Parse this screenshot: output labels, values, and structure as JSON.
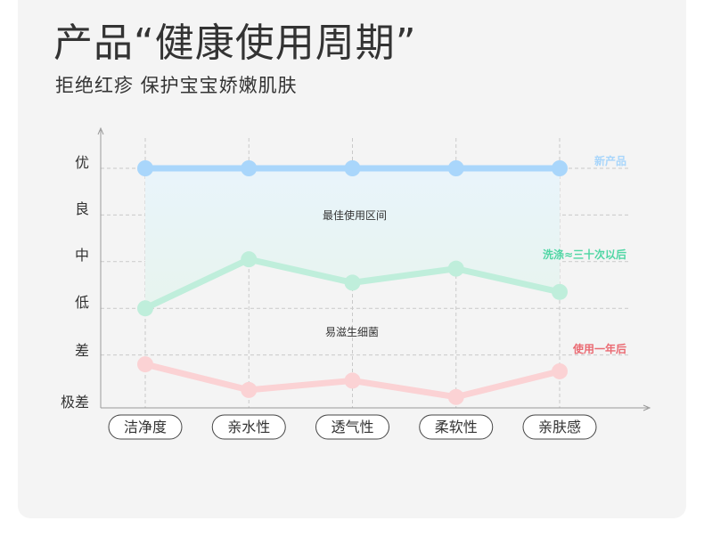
{
  "header": {
    "title": "产品“健康使用周期”",
    "subtitle": "拒绝红疹 保护宝宝娇嫩肌肤"
  },
  "chart_data": {
    "type": "line",
    "categories": [
      "洁净度",
      "亲水性",
      "透气性",
      "柔软性",
      "亲肤感"
    ],
    "y_ticks": [
      "极差",
      "差",
      "低",
      "中",
      "良",
      "优"
    ],
    "ylim": [
      0,
      5
    ],
    "series": [
      {
        "name": "新产品",
        "values": [
          5,
          5,
          5,
          5,
          5
        ],
        "color": "#a9d6fb"
      },
      {
        "name": "洗涤≈三十次以后",
        "values": [
          2,
          3.05,
          2.55,
          2.85,
          2.35
        ],
        "color": "#bfeedb",
        "label_color": "#50d6a4"
      },
      {
        "name": "使用一年后",
        "values": [
          0.8,
          0.25,
          0.45,
          0.1,
          0.65
        ],
        "color": "#fbd2d4",
        "label_color": "#ea6a72"
      }
    ],
    "annotations": [
      "最佳使用区间",
      "易滋生细菌"
    ],
    "grid": true,
    "fill_between": [
      "新产品",
      "洗涤≈三十次以后"
    ]
  }
}
